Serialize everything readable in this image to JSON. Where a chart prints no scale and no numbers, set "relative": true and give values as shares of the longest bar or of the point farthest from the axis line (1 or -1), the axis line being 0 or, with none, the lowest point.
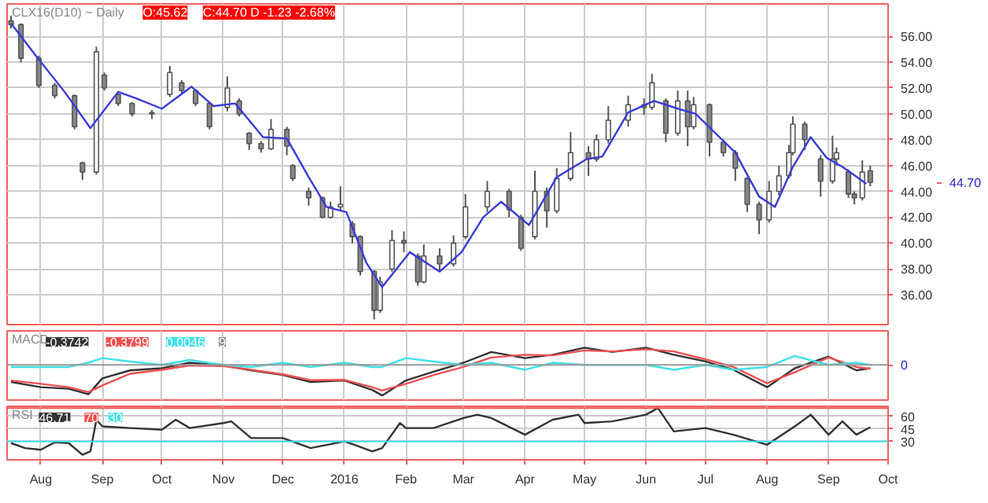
{
  "chart_data": [
    {
      "type": "candlestick",
      "title": "CLX16(D10) ~ Daily",
      "annotations": [
        "O:45.62",
        "C:44.70 D -1.23 -2.68%",
        "44.70"
      ],
      "x": [
        "2015-07-17",
        "2015-07-22",
        "2015-07-31",
        "2015-08-08",
        "2015-08-18",
        "2015-08-22",
        "2015-08-29",
        "2015-09-02",
        "2015-09-09",
        "2015-09-16",
        "2015-09-26",
        "2015-10-05",
        "2015-10-11",
        "2015-10-18",
        "2015-10-25",
        "2015-11-03",
        "2015-11-09",
        "2015-11-14",
        "2015-11-20",
        "2015-11-25",
        "2015-12-03",
        "2015-12-06",
        "2015-12-14",
        "2015-12-21",
        "2015-12-25",
        "2015-12-30",
        "2016-01-05",
        "2016-01-09",
        "2016-01-16",
        "2016-01-19",
        "2016-01-25",
        "2016-01-31",
        "2016-02-07",
        "2016-02-10",
        "2016-02-18",
        "2016-02-25",
        "2016-03-02",
        "2016-03-13",
        "2016-03-24",
        "2016-03-30",
        "2016-04-06",
        "2016-04-12",
        "2016-04-17",
        "2016-04-24",
        "2016-05-03",
        "2016-05-07",
        "2016-05-13",
        "2016-05-23",
        "2016-05-31",
        "2016-06-04",
        "2016-06-11",
        "2016-06-17",
        "2016-06-22",
        "2016-06-25",
        "2016-07-03",
        "2016-07-10",
        "2016-07-16",
        "2016-07-22",
        "2016-07-28",
        "2016-08-02",
        "2016-08-07",
        "2016-08-12",
        "2016-08-14",
        "2016-08-20",
        "2016-08-28",
        "2016-09-03",
        "2016-09-05",
        "2016-09-11",
        "2016-09-14",
        "2016-09-18",
        "2016-09-22"
      ],
      "ohlc": [
        [
          57.2,
          57.6,
          56.6,
          56.9
        ],
        [
          56.9,
          57.0,
          54.0,
          54.3
        ],
        [
          54.3,
          54.5,
          52.0,
          52.2
        ],
        [
          52.2,
          52.4,
          51.2,
          51.4
        ],
        [
          51.4,
          51.5,
          48.8,
          49.0
        ],
        [
          46.2,
          46.3,
          44.9,
          45.5
        ],
        [
          45.5,
          55.2,
          45.3,
          54.8
        ],
        [
          53.0,
          53.2,
          51.8,
          52.0
        ],
        [
          51.5,
          51.6,
          50.6,
          50.8
        ],
        [
          50.8,
          50.9,
          49.8,
          50.0
        ],
        [
          50.0,
          50.3,
          49.6,
          50.1
        ],
        [
          51.5,
          53.7,
          51.3,
          53.2
        ],
        [
          52.4,
          52.6,
          51.6,
          51.8
        ],
        [
          51.8,
          51.9,
          50.6,
          50.8
        ],
        [
          50.8,
          50.9,
          48.8,
          49.0
        ],
        [
          50.5,
          52.9,
          50.2,
          52.0
        ],
        [
          51.0,
          51.2,
          49.8,
          50.0
        ],
        [
          48.5,
          48.6,
          47.2,
          47.7
        ],
        [
          47.7,
          47.9,
          47.0,
          47.3
        ],
        [
          47.3,
          49.6,
          47.2,
          48.8
        ],
        [
          48.8,
          49.0,
          46.8,
          47.5
        ],
        [
          46.0,
          46.1,
          44.8,
          45.0
        ],
        [
          44.0,
          44.3,
          42.9,
          43.5
        ],
        [
          43.5,
          43.6,
          41.9,
          42.0
        ],
        [
          42.0,
          43.2,
          41.9,
          42.8
        ],
        [
          42.8,
          44.4,
          42.5,
          43.0
        ],
        [
          41.5,
          41.7,
          40.0,
          40.5
        ],
        [
          40.5,
          40.6,
          37.5,
          37.8
        ],
        [
          37.8,
          37.9,
          34.1,
          34.8
        ],
        [
          34.8,
          37.4,
          34.6,
          37.0
        ],
        [
          38.0,
          41.0,
          37.8,
          40.2
        ],
        [
          40.2,
          40.9,
          39.3,
          40.0
        ],
        [
          39.0,
          39.2,
          36.7,
          37.0
        ],
        [
          37.0,
          39.9,
          36.9,
          39.0
        ],
        [
          39.0,
          39.6,
          37.8,
          38.4
        ],
        [
          38.4,
          40.6,
          38.2,
          40.0
        ],
        [
          40.5,
          43.8,
          40.3,
          42.8
        ],
        [
          42.8,
          44.8,
          42.4,
          44.0
        ],
        [
          44.0,
          44.2,
          42.0,
          42.6
        ],
        [
          42.0,
          42.2,
          39.4,
          39.6
        ],
        [
          40.5,
          45.6,
          40.3,
          44.0
        ],
        [
          44.0,
          44.3,
          41.2,
          42.5
        ],
        [
          42.5,
          45.8,
          42.3,
          45.0
        ],
        [
          45.0,
          48.6,
          44.8,
          47.0
        ],
        [
          47.0,
          47.5,
          45.2,
          46.5
        ],
        [
          46.5,
          48.4,
          46.3,
          48.0
        ],
        [
          48.0,
          50.6,
          47.7,
          49.5
        ],
        [
          49.5,
          51.4,
          49.0,
          50.7
        ],
        [
          50.7,
          51.2,
          49.9,
          50.5
        ],
        [
          50.5,
          53.1,
          50.3,
          52.4
        ],
        [
          51.0,
          51.2,
          47.8,
          48.5
        ],
        [
          48.5,
          51.8,
          48.3,
          51.0
        ],
        [
          51.0,
          51.8,
          47.5,
          49.0
        ],
        [
          49.0,
          51.3,
          48.8,
          50.7
        ],
        [
          50.7,
          50.8,
          46.7,
          47.8
        ],
        [
          47.8,
          48.0,
          46.7,
          47.0
        ],
        [
          47.0,
          47.2,
          44.8,
          45.8
        ],
        [
          45.0,
          45.1,
          42.4,
          43.0
        ],
        [
          43.0,
          43.2,
          40.7,
          41.8
        ],
        [
          41.8,
          44.8,
          41.6,
          44.0
        ],
        [
          44.0,
          46.0,
          43.7,
          45.2
        ],
        [
          45.2,
          47.6,
          45.0,
          47.0
        ],
        [
          47.0,
          49.8,
          46.8,
          49.2
        ],
        [
          49.2,
          49.4,
          47.2,
          48.0
        ],
        [
          46.5,
          46.8,
          43.6,
          44.8
        ],
        [
          44.8,
          48.3,
          44.6,
          46.5
        ],
        [
          46.5,
          47.4,
          46.0,
          47.0
        ],
        [
          45.5,
          45.7,
          43.5,
          43.8
        ],
        [
          43.8,
          44.0,
          43.0,
          43.5
        ],
        [
          43.5,
          46.4,
          43.3,
          45.5
        ],
        [
          45.6,
          46.0,
          44.4,
          44.7
        ]
      ],
      "series": [
        {
          "type": "line",
          "color": "#3a3ad8",
          "x": [
            "2015-07-17",
            "2015-07-29",
            "2015-08-13",
            "2015-08-26",
            "2015-09-09",
            "2015-09-18",
            "2015-10-01",
            "2015-10-16",
            "2015-10-27",
            "2015-11-07",
            "2015-11-21",
            "2015-12-03",
            "2015-12-14",
            "2015-12-23",
            "2016-01-02",
            "2016-01-12",
            "2016-01-20",
            "2016-02-03",
            "2016-02-18",
            "2016-02-29",
            "2016-03-11",
            "2016-03-20",
            "2016-04-03",
            "2016-04-17",
            "2016-05-02",
            "2016-05-10",
            "2016-05-23",
            "2016-06-05",
            "2016-06-17",
            "2016-06-26",
            "2016-07-06",
            "2016-07-16",
            "2016-07-28",
            "2016-08-05",
            "2016-08-14",
            "2016-08-23",
            "2016-08-31",
            "2016-09-08",
            "2016-09-20"
          ],
          "values": [
            57.0,
            54.6,
            51.7,
            48.9,
            51.7,
            51.2,
            50.4,
            52.1,
            50.6,
            50.8,
            48.2,
            48.1,
            45.1,
            42.8,
            42.4,
            38.5,
            36.6,
            39.3,
            37.8,
            39.3,
            42.0,
            43.2,
            41.4,
            45.1,
            46.5,
            46.7,
            50.1,
            51.0,
            50.4,
            50.0,
            48.5,
            47.0,
            43.6,
            42.8,
            45.9,
            48.2,
            46.6,
            45.9,
            44.6
          ]
        }
      ],
      "xlim": [
        "2015-07-15",
        "2016-10-01"
      ],
      "xticks": [
        {
          "value": "2015-08-01",
          "label": null
        },
        {
          "value": "2015-09-01",
          "label": null
        },
        {
          "value": "2015-10-01",
          "label": null
        },
        {
          "value": "2015-11-01",
          "label": null
        },
        {
          "value": "2015-12-01",
          "label": null
        },
        {
          "value": "2016-01-01",
          "label": null
        },
        {
          "value": "2016-02-01",
          "label": null
        },
        {
          "value": "2016-03-01",
          "label": null
        },
        {
          "value": "2016-04-01",
          "label": null
        },
        {
          "value": "2016-05-01",
          "label": null
        },
        {
          "value": "2016-06-01",
          "label": null
        },
        {
          "value": "2016-07-01",
          "label": null
        },
        {
          "value": "2016-08-01",
          "label": null
        },
        {
          "value": "2016-09-01",
          "label": null
        },
        {
          "value": "2016-10-01",
          "label": null
        }
      ],
      "ylim": [
        33.7,
        58.5
      ],
      "yticks": [
        {
          "value": 36,
          "label": "36.00"
        },
        {
          "value": 38,
          "label": "38.00"
        },
        {
          "value": 40,
          "label": "40.00"
        },
        {
          "value": 42,
          "label": "42.00"
        },
        {
          "value": 44,
          "label": "44.00"
        },
        {
          "value": 46,
          "label": "46.00"
        },
        {
          "value": 48,
          "label": "48.00"
        },
        {
          "value": 50,
          "label": "50.00"
        },
        {
          "value": 52,
          "label": "52.00"
        },
        {
          "value": 54,
          "label": "54.00"
        },
        {
          "value": 56,
          "label": "56.00"
        }
      ],
      "grid": true,
      "tick_labels": "y"
    },
    {
      "type": "line",
      "title": "MACD",
      "relative": true,
      "annotations": [
        "-0.3742",
        "-0.3799",
        "0.0046",
        "9",
        "0"
      ],
      "x": [
        "2015-07-17",
        "2015-08-01",
        "2015-08-15",
        "2015-08-25",
        "2015-09-01",
        "2015-09-15",
        "2015-10-01",
        "2015-10-15",
        "2015-11-01",
        "2015-11-15",
        "2015-12-01",
        "2015-12-15",
        "2016-01-01",
        "2016-01-15",
        "2016-01-20",
        "2016-02-01",
        "2016-02-15",
        "2016-03-01",
        "2016-03-15",
        "2016-04-01",
        "2016-04-15",
        "2016-05-01",
        "2016-05-15",
        "2016-06-01",
        "2016-06-15",
        "2016-07-01",
        "2016-07-15",
        "2016-08-01",
        "2016-08-15",
        "2016-09-01",
        "2016-09-15",
        "2016-09-22"
      ],
      "series": [
        {
          "color": "#333333",
          "values": [
            -0.56,
            -0.73,
            -0.78,
            -0.96,
            -0.44,
            -0.18,
            -0.11,
            0.07,
            -0.02,
            -0.18,
            -0.33,
            -0.56,
            -0.51,
            -0.82,
            -1.0,
            -0.51,
            -0.22,
            0.07,
            0.42,
            0.22,
            0.33,
            0.56,
            0.42,
            0.56,
            0.33,
            0.11,
            -0.16,
            -0.73,
            -0.11,
            0.27,
            -0.18,
            -0.11
          ]
        },
        {
          "color": "#f05050",
          "values": [
            -0.51,
            -0.62,
            -0.73,
            -0.89,
            -0.67,
            -0.29,
            -0.16,
            -0.02,
            -0.04,
            -0.16,
            -0.31,
            -0.5,
            -0.49,
            -0.73,
            -0.84,
            -0.62,
            -0.33,
            -0.07,
            0.24,
            0.33,
            0.31,
            0.47,
            0.44,
            0.51,
            0.44,
            0.18,
            -0.07,
            -0.6,
            -0.24,
            0.24,
            -0.07,
            -0.13
          ]
        },
        {
          "color": "#40e0e8",
          "values": [
            -0.07,
            -0.07,
            -0.07,
            0.07,
            0.22,
            0.11,
            0,
            0.16,
            0,
            -0.07,
            0.07,
            -0.07,
            0.07,
            -0.07,
            -0.07,
            0.22,
            0.11,
            0,
            0.07,
            -0.16,
            0.07,
            0,
            0,
            0,
            -0.16,
            0,
            -0.16,
            -0.07,
            0.29,
            0,
            0.07,
            0
          ]
        }
      ],
      "xlim": [
        "2015-07-15",
        "2016-10-01"
      ],
      "xticks": [
        {
          "value": "2015-08-01",
          "label": null
        },
        {
          "value": "2015-09-01",
          "label": null
        },
        {
          "value": "2015-10-01",
          "label": null
        },
        {
          "value": "2015-11-01",
          "label": null
        },
        {
          "value": "2015-12-01",
          "label": null
        },
        {
          "value": "2016-01-01",
          "label": null
        },
        {
          "value": "2016-02-01",
          "label": null
        },
        {
          "value": "2016-03-01",
          "label": null
        },
        {
          "value": "2016-04-01",
          "label": null
        },
        {
          "value": "2016-05-01",
          "label": null
        },
        {
          "value": "2016-06-01",
          "label": null
        },
        {
          "value": "2016-07-01",
          "label": null
        },
        {
          "value": "2016-08-01",
          "label": null
        },
        {
          "value": "2016-09-01",
          "label": null
        },
        {
          "value": "2016-10-01",
          "label": null
        }
      ],
      "grid": "x",
      "tick_labels": false
    },
    {
      "type": "line",
      "title": "RSI",
      "annotations": [
        "46.71",
        "70",
        "30"
      ],
      "series": [
        {
          "color": "#333333",
          "x": [
            "2015-07-17",
            "2015-07-24",
            "2015-08-01",
            "2015-08-08",
            "2015-08-15",
            "2015-08-22",
            "2015-08-26",
            "2015-08-29",
            "2015-09-01",
            "2015-09-15",
            "2015-10-01",
            "2015-10-08",
            "2015-10-15",
            "2015-11-01",
            "2015-11-05",
            "2015-11-15",
            "2015-12-01",
            "2015-12-15",
            "2016-01-01",
            "2016-01-06",
            "2016-01-15",
            "2016-01-20",
            "2016-01-29",
            "2016-02-01",
            "2016-02-15",
            "2016-03-01",
            "2016-03-08",
            "2016-03-15",
            "2016-04-01",
            "2016-04-15",
            "2016-04-28",
            "2016-05-01",
            "2016-05-15",
            "2016-06-01",
            "2016-06-07",
            "2016-06-15",
            "2016-07-01",
            "2016-07-15",
            "2016-08-01",
            "2016-08-15",
            "2016-08-23",
            "2016-09-01",
            "2016-09-08",
            "2016-09-15",
            "2016-09-22"
          ],
          "values": [
            28,
            22,
            20,
            29,
            28,
            14,
            18,
            56,
            48,
            46,
            44,
            56,
            46,
            52,
            54,
            34,
            34,
            22,
            30,
            26,
            18,
            22,
            52,
            46,
            46,
            58,
            62,
            58,
            38,
            56,
            62,
            52,
            54,
            62,
            70,
            42,
            46,
            38,
            26,
            48,
            62,
            38,
            54,
            38,
            47
          ]
        }
      ],
      "ref_lines": [
        {
          "axis": "y",
          "value": 70,
          "color": "#f05050"
        },
        {
          "axis": "y",
          "value": 30,
          "color": "#40e0e8"
        }
      ],
      "xlim": [
        "2015-07-15",
        "2016-10-01"
      ],
      "xticks": [
        {
          "value": "2015-08-01",
          "label": "Aug"
        },
        {
          "value": "2015-09-01",
          "label": "Sep"
        },
        {
          "value": "2015-10-01",
          "label": "Oct"
        },
        {
          "value": "2015-11-01",
          "label": "Nov"
        },
        {
          "value": "2015-12-01",
          "label": "Dec"
        },
        {
          "value": "2016-01-01",
          "label": "2016"
        },
        {
          "value": "2016-02-01",
          "label": "Feb"
        },
        {
          "value": "2016-03-01",
          "label": "Mar"
        },
        {
          "value": "2016-04-01",
          "label": "Apr"
        },
        {
          "value": "2016-05-01",
          "label": "May"
        },
        {
          "value": "2016-06-01",
          "label": "Jun"
        },
        {
          "value": "2016-07-01",
          "label": "Jul"
        },
        {
          "value": "2016-08-01",
          "label": "Aug"
        },
        {
          "value": "2016-09-01",
          "label": "Sep"
        },
        {
          "value": "2016-10-01",
          "label": "Oct"
        }
      ],
      "ylim": [
        8,
        72
      ],
      "yticks": [
        30,
        45,
        60
      ],
      "grid": true
    }
  ]
}
